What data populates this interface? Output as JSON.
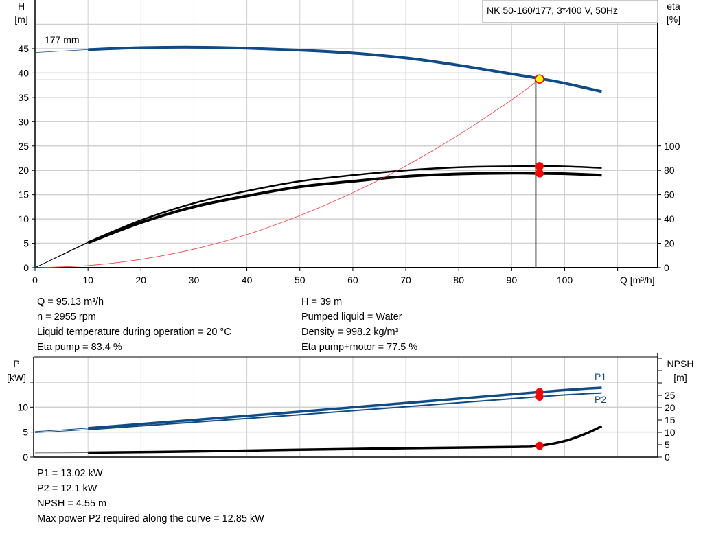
{
  "title": "NK 50-160/177, 3*400 V, 50Hz",
  "colors": {
    "pump_curve": "#0f4c87",
    "eta": "#000000",
    "system": "#ff3333",
    "marker": "#ff0000",
    "duty_point": "#ffff00",
    "grid": "#d0d0d0"
  },
  "chart_data": [
    {
      "type": "line",
      "xlabel": "Q [m³/h]",
      "xlim": [
        0,
        117
      ],
      "xticks": [
        0,
        10,
        20,
        30,
        40,
        50,
        60,
        70,
        80,
        90,
        100
      ],
      "ylabel_left": [
        "H",
        "[m]"
      ],
      "ylim_left": [
        0,
        55
      ],
      "yticks_left": [
        0,
        5,
        10,
        15,
        20,
        25,
        30,
        35,
        40,
        45
      ],
      "ylabel_right": [
        "eta",
        "[%]"
      ],
      "ylim_right": [
        0,
        220
      ],
      "yticks_right": [
        0,
        20,
        40,
        60,
        80,
        100
      ],
      "grid": true,
      "curve_label": "177 mm",
      "series": [
        {
          "key": "H",
          "axis": "left",
          "x": [
            0,
            10,
            20,
            30,
            40,
            50,
            60,
            70,
            80,
            90,
            95.13,
            100,
            107
          ],
          "y": [
            44.2,
            44.8,
            45.2,
            45.3,
            45.1,
            44.7,
            44.1,
            43.1,
            41.6,
            39.8,
            38.9,
            37.9,
            36.2
          ]
        },
        {
          "key": "eta_pump",
          "axis": "right",
          "x": [
            0,
            10,
            20,
            30,
            40,
            50,
            60,
            70,
            80,
            90,
            95.13,
            100,
            107
          ],
          "y": [
            0,
            21,
            39,
            53,
            63,
            71,
            76,
            80,
            82.5,
            83.3,
            83.4,
            83.2,
            82
          ]
        },
        {
          "key": "eta_pump_motor",
          "axis": "right",
          "x": [
            0,
            10,
            20,
            30,
            40,
            50,
            60,
            70,
            80,
            90,
            95.13,
            100,
            107
          ],
          "y": [
            0,
            20.5,
            37,
            50,
            59,
            66.5,
            71,
            75,
            77,
            77.7,
            77.5,
            77.2,
            76
          ]
        },
        {
          "key": "system",
          "axis": "left",
          "x": [
            0,
            10,
            20,
            30,
            40,
            50,
            60,
            70,
            80,
            90,
            95.13
          ],
          "y": [
            0,
            0.43,
            1.7,
            3.8,
            6.8,
            10.7,
            15.4,
            20.9,
            27.3,
            34.5,
            38.6
          ]
        }
      ],
      "duty_point": {
        "Q": 95.13,
        "H": 38.6
      }
    },
    {
      "type": "line",
      "xlim": [
        0,
        117
      ],
      "ylabel_left": [
        "P",
        "[kW]"
      ],
      "ylim_left": [
        0,
        20
      ],
      "yticks_left": [
        0,
        5,
        10
      ],
      "ylabel_right": [
        "NPSH",
        "[m]"
      ],
      "ylim_right": [
        0,
        40
      ],
      "yticks_right": [
        0,
        5,
        10,
        15,
        20,
        25
      ],
      "grid": true,
      "series": [
        {
          "name": "P1",
          "axis": "left",
          "x": [
            0,
            10,
            50,
            95.13,
            107
          ],
          "y": [
            5.1,
            5.8,
            9.1,
            13.02,
            13.9
          ]
        },
        {
          "name": "P2",
          "axis": "left",
          "x": [
            0,
            10,
            50,
            95.13,
            107
          ],
          "y": [
            4.9,
            5.5,
            8.5,
            12.1,
            12.85
          ]
        },
        {
          "key": "NPSH",
          "axis": "right",
          "x": [
            0,
            10,
            30,
            50,
            70,
            90,
            95.13,
            100,
            104,
            107
          ],
          "y": [
            1.7,
            1.8,
            2.3,
            3.0,
            3.6,
            4.1,
            4.55,
            6.5,
            9.5,
            12.5
          ]
        }
      ],
      "duty_Q": 95.13
    }
  ],
  "results_top": {
    "left": [
      "Q = 95.13 m³/h",
      "n = 2955 rpm",
      "Liquid temperature during operation = 20 °C",
      "Eta pump = 83.4 %"
    ],
    "right": [
      "H = 39 m",
      "Pumped liquid = Water",
      "Density = 998.2 kg/m³",
      "Eta pump+motor = 77.5 %"
    ]
  },
  "results_bottom": [
    "P1 = 13.02 kW",
    "P2 = 12.1 kW",
    "NPSH = 4.55 m",
    "Max power P2 required along the curve = 12.85 kW"
  ]
}
